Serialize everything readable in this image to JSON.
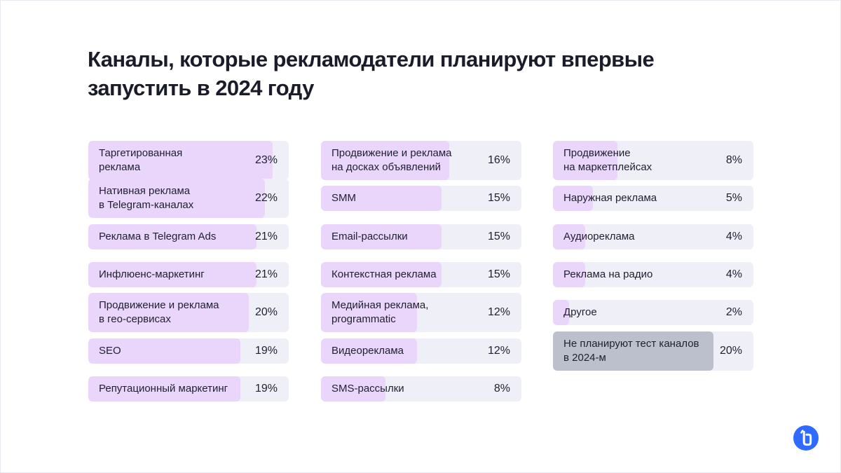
{
  "title_lines": [
    "Каналы, которые рекламодатели планируют впервые",
    "запустить в 2024 году"
  ],
  "colors": {
    "bar_track": "#efeff8",
    "bar_fill": "#ead5fb",
    "bar_fill_highlight": "#bcc0cc",
    "logo": "#2f6bff"
  },
  "logo_icon": "brand-logo-icon",
  "chart_data": {
    "type": "bar",
    "orientation": "horizontal",
    "unit": "%",
    "xlim": [
      0,
      25
    ],
    "columns": [
      [
        {
          "label": [
            "Таргетированная",
            "реклама"
          ],
          "value": 23,
          "display": "23%"
        },
        {
          "label": [
            "Нативная реклама",
            "в Telegram-каналах"
          ],
          "value": 22,
          "display": "22%"
        },
        {
          "label": [
            "Реклама в Telegram Ads"
          ],
          "value": 21,
          "display": "21%"
        },
        {
          "label": [
            "Инфлюенс-маркетинг"
          ],
          "value": 21,
          "display": "21%"
        },
        {
          "label": [
            "Продвижение и реклама",
            "в гео-сервисах"
          ],
          "value": 20,
          "display": "20%"
        },
        {
          "label": [
            "SEO"
          ],
          "value": 19,
          "display": "19%"
        },
        {
          "label": [
            "Репутационный маркетинг"
          ],
          "value": 19,
          "display": "19%"
        }
      ],
      [
        {
          "label": [
            "Продвижение и реклама",
            "на досках объявлений"
          ],
          "value": 16,
          "display": "16%"
        },
        {
          "label": [
            "SMM"
          ],
          "value": 15,
          "display": "15%"
        },
        {
          "label": [
            "Email-рассылки"
          ],
          "value": 15,
          "display": "15%"
        },
        {
          "label": [
            "Контекстная реклама"
          ],
          "value": 15,
          "display": "15%"
        },
        {
          "label": [
            "Медийная реклама,",
            "programmatic"
          ],
          "value": 12,
          "display": "12%"
        },
        {
          "label": [
            "Видеореклама"
          ],
          "value": 12,
          "display": "12%"
        },
        {
          "label": [
            "SMS-рассылки"
          ],
          "value": 8,
          "display": "8%"
        }
      ],
      [
        {
          "label": [
            "Продвижение",
            "на маркетплейсах"
          ],
          "value": 8,
          "display": "8%"
        },
        {
          "label": [
            "Наружная реклама"
          ],
          "value": 5,
          "display": "5%"
        },
        {
          "label": [
            "Аудиореклама"
          ],
          "value": 4,
          "display": "4%"
        },
        {
          "label": [
            "Реклама на радио"
          ],
          "value": 4,
          "display": "4%"
        },
        {
          "label": [
            "Другое"
          ],
          "value": 2,
          "display": "2%"
        },
        {
          "label": [
            "Не планируют тест каналов",
            "в 2024-м"
          ],
          "value": 20,
          "display": "20%",
          "highlight": true
        }
      ]
    ]
  }
}
